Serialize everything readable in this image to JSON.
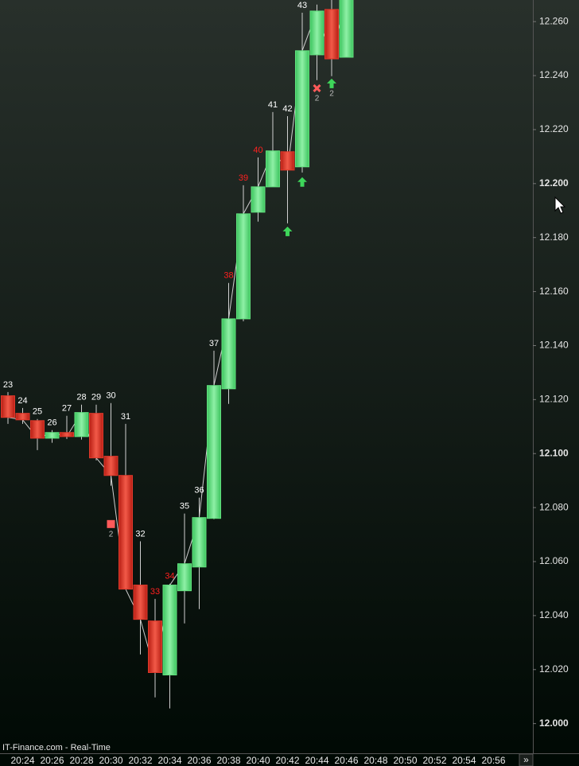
{
  "chart_data": {
    "type": "candlestick",
    "categories": [
      null,
      "20:24",
      null,
      "20:26",
      null,
      "20:28",
      null,
      "20:30",
      null,
      "20:32",
      null,
      "20:34",
      null,
      "20:36",
      null,
      "20:38",
      null,
      "20:40",
      null,
      "20:42",
      null,
      "20:44",
      null,
      "20:46",
      null,
      "20:48",
      null,
      "20:50",
      null,
      "20:52",
      null,
      "20:54",
      null,
      "20:56",
      null
    ],
    "open": [
      12.1214,
      12.1149,
      12.1122,
      12.1057,
      12.1078,
      12.1063,
      12.1149,
      12.099,
      12.0919,
      12.0513,
      12.038,
      12.018,
      12.0492,
      12.058,
      12.076,
      12.124,
      12.1499,
      12.1894,
      12.1988,
      12.2118,
      12.2062,
      12.2477,
      12.2645,
      12.2468,
      null,
      null,
      null,
      null,
      null,
      null,
      null,
      null,
      null,
      null,
      null
    ],
    "high": [
      12.1228,
      12.1169,
      12.1128,
      12.1087,
      12.114,
      12.1181,
      12.1181,
      12.1187,
      12.111,
      12.0675,
      12.0462,
      12.0518,
      12.0778,
      12.0837,
      12.1381,
      12.1632,
      12.1994,
      12.2097,
      12.2265,
      12.225,
      12.2633,
      12.2663,
      12.27,
      12.27,
      null,
      null,
      null,
      null,
      null,
      null,
      null,
      null,
      null,
      null,
      null
    ],
    "low": [
      12.111,
      12.111,
      12.1013,
      12.104,
      12.1054,
      12.1052,
      12.0975,
      12.0881,
      12.0498,
      12.0256,
      12.0097,
      12.0056,
      12.0371,
      12.0424,
      12.0757,
      12.1184,
      12.149,
      12.1859,
      12.1988,
      12.1853,
      12.2041,
      12.2383,
      12.2398,
      12.2468,
      null,
      null,
      null,
      null,
      null,
      null,
      null,
      null,
      null,
      null,
      null
    ],
    "close": [
      12.1134,
      12.1125,
      12.1057,
      12.1078,
      12.1063,
      12.1152,
      12.0984,
      12.0919,
      12.0498,
      12.0386,
      12.0189,
      12.0513,
      12.0592,
      12.0763,
      12.1252,
      12.1499,
      12.1888,
      12.1988,
      12.2121,
      12.205,
      12.2492,
      12.2639,
      12.2462,
      12.27,
      null,
      null,
      null,
      null,
      null,
      null,
      null,
      null,
      null,
      null,
      null
    ],
    "bar_numbers": [
      23,
      24,
      25,
      26,
      27,
      28,
      29,
      30,
      31,
      32,
      33,
      34,
      35,
      36,
      37,
      38,
      39,
      40,
      41,
      42,
      43,
      null,
      null,
      null,
      null,
      null,
      null,
      null,
      null,
      null,
      null,
      null,
      null,
      null,
      null
    ],
    "bar_number_colors": [
      "#ffffff",
      "#ffffff",
      "#ffffff",
      "#ffffff",
      "#ffffff",
      "#ffffff",
      "#ffffff",
      "#ffffff",
      "#ffffff",
      "#ffffff",
      "#ff2020",
      "#ff2020",
      "#ffffff",
      "#ffffff",
      "#ffffff",
      "#ff2020",
      "#ff2020",
      "#ff2020",
      "#ffffff",
      "#ffffff",
      "#ffffff",
      null,
      null,
      null,
      null,
      null,
      null,
      null,
      null,
      null,
      null,
      null,
      null,
      null,
      null
    ],
    "up_arrows": [
      null,
      null,
      null,
      null,
      null,
      null,
      null,
      null,
      null,
      null,
      null,
      null,
      null,
      null,
      null,
      null,
      null,
      null,
      null,
      12.1823,
      12.2006,
      null,
      12.2371,
      null,
      null,
      null,
      null,
      null,
      null,
      null,
      null,
      null,
      null,
      null,
      null
    ],
    "cross_marks": [
      null,
      null,
      null,
      null,
      null,
      null,
      null,
      null,
      null,
      null,
      null,
      null,
      null,
      null,
      null,
      null,
      null,
      null,
      null,
      null,
      null,
      12.2353,
      null,
      null,
      null,
      null,
      null,
      null,
      null,
      null,
      null,
      null,
      null,
      null,
      null
    ],
    "square_marks": [
      null,
      null,
      null,
      null,
      null,
      null,
      null,
      12.0739,
      null,
      null,
      null,
      null,
      null,
      null,
      null,
      null,
      null,
      null,
      null,
      null,
      null,
      null,
      null,
      null,
      null,
      null,
      null,
      null,
      null,
      null,
      null,
      null,
      null,
      null,
      null
    ],
    "signal_counts": [
      null,
      null,
      null,
      null,
      null,
      null,
      null,
      2,
      null,
      null,
      null,
      null,
      null,
      null,
      null,
      null,
      null,
      null,
      null,
      null,
      null,
      2,
      2,
      null,
      null,
      null,
      null,
      null,
      null,
      null,
      null,
      null,
      null,
      null,
      null
    ],
    "up_color": "#62e07e",
    "down_color": "#e0392b",
    "wick_color": "#d0d0d0",
    "line_color": "#cfcfcf",
    "arrow_color": "#3ed65a",
    "cross_color": "#ff5a5a",
    "ylim": [
      11.989,
      12.268
    ],
    "yticks": [
      {
        "value": 12.0,
        "label": "12.000"
      },
      {
        "value": 12.02,
        "label": "12.020"
      },
      {
        "value": 12.04,
        "label": "12.040"
      },
      {
        "value": 12.06,
        "label": "12.060"
      },
      {
        "value": 12.08,
        "label": "12.080"
      },
      {
        "value": 12.1,
        "label": "12.100"
      },
      {
        "value": 12.12,
        "label": "12.120"
      },
      {
        "value": 12.14,
        "label": "12.140"
      },
      {
        "value": 12.16,
        "label": "12.160"
      },
      {
        "value": 12.18,
        "label": "12.180"
      },
      {
        "value": 12.2,
        "label": "12.200"
      },
      {
        "value": 12.22,
        "label": "12.220"
      },
      {
        "value": 12.24,
        "label": "12.240"
      },
      {
        "value": 12.26,
        "label": "12.260"
      }
    ],
    "source": "IT-Finance.com - Real-Time",
    "scroll_button": "»"
  }
}
